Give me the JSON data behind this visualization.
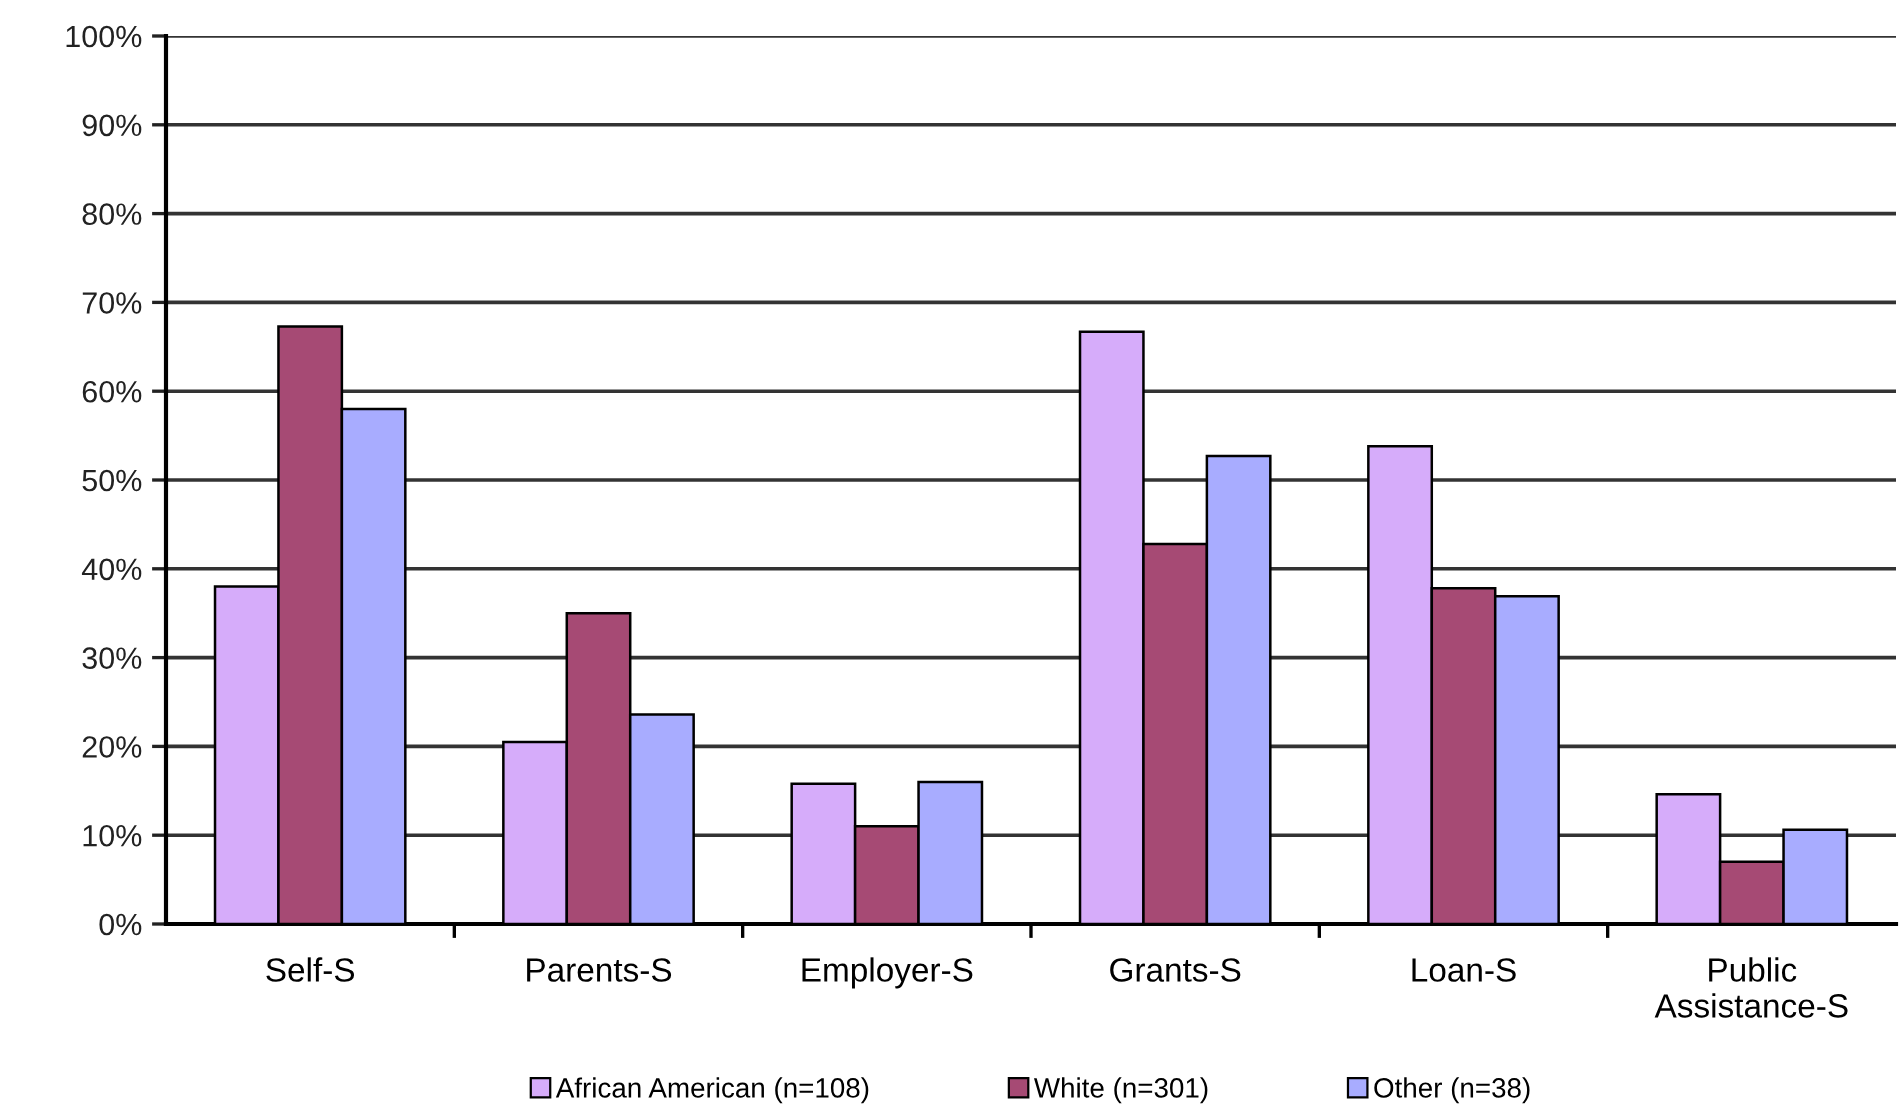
{
  "chart_data": {
    "type": "bar",
    "categories": [
      "Self-S",
      "Parents-S",
      "Employer-S",
      "Grants-S",
      "Loan-S",
      "Public\nAssistance-S"
    ],
    "series": [
      {
        "name": "African American (n=108)",
        "color": "#d6acfa",
        "values": [
          38,
          20.5,
          15.8,
          66.7,
          53.8,
          14.6
        ]
      },
      {
        "name": "White (n=301)",
        "color": "#a64a74",
        "values": [
          67.3,
          35,
          11,
          42.8,
          37.8,
          7
        ]
      },
      {
        "name": "Other (n=38)",
        "color": "#a8acff",
        "values": [
          58,
          23.6,
          16,
          52.7,
          36.9,
          10.6
        ]
      }
    ],
    "ylim": [
      0,
      100
    ],
    "yticks": [
      {
        "value": 0,
        "label": "0%"
      },
      {
        "value": 10,
        "label": "10%"
      },
      {
        "value": 20,
        "label": "20%"
      },
      {
        "value": 30,
        "label": "30%"
      },
      {
        "value": 40,
        "label": "40%"
      },
      {
        "value": 50,
        "label": "50%"
      },
      {
        "value": 60,
        "label": "60%"
      },
      {
        "value": 70,
        "label": "70%"
      },
      {
        "value": 80,
        "label": "80%"
      },
      {
        "value": 90,
        "label": "90%"
      },
      {
        "value": 100,
        "label": "100%"
      }
    ],
    "grid": "y",
    "legend": "bottom"
  }
}
